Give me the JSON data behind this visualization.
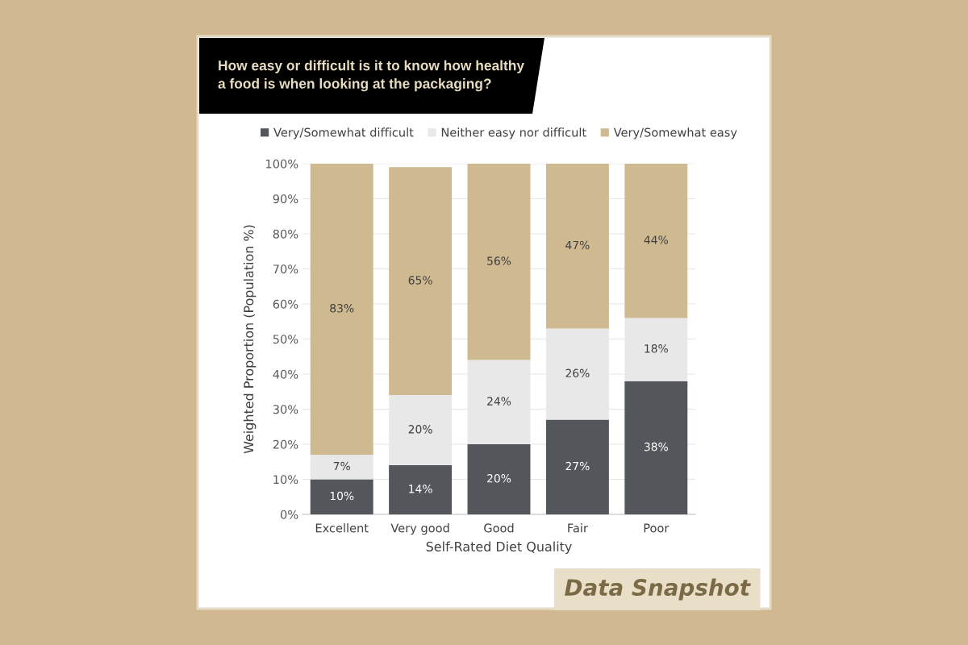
{
  "chart_data": {
    "type": "bar",
    "stacked": true,
    "title": "How easy or difficult is it to know how healthy a food is when looking at the packaging?",
    "xlabel": "Self-Rated Diet Quality",
    "ylabel": "Weighted Proportion (Population %)",
    "categories": [
      "Excellent",
      "Very good",
      "Good",
      "Fair",
      "Poor"
    ],
    "series": [
      {
        "name": "Very/Somewhat difficult",
        "color": "#53565a",
        "values": [
          10,
          14,
          20,
          27,
          38
        ],
        "value_labels": [
          "10%",
          "14%",
          "20%",
          "27%",
          "38%"
        ]
      },
      {
        "name": "Neither easy nor difficult",
        "color": "#e8e8e8",
        "values": [
          7,
          20,
          24,
          26,
          18
        ],
        "value_labels": [
          "7%",
          "20%",
          "24%",
          "26%",
          "18%"
        ]
      },
      {
        "name": "Very/Somewhat easy",
        "color": "#cfb991",
        "values": [
          83,
          65,
          56,
          47,
          44
        ],
        "value_labels": [
          "83%",
          "65%",
          "56%",
          "47%",
          "44%"
        ]
      }
    ],
    "ylim": [
      0,
      100
    ],
    "yticks": [
      {
        "value": 0,
        "label": "0%"
      },
      {
        "value": 10,
        "label": "10%"
      },
      {
        "value": 20,
        "label": "20%"
      },
      {
        "value": 30,
        "label": "30%"
      },
      {
        "value": 40,
        "label": "40%"
      },
      {
        "value": 50,
        "label": "50%"
      },
      {
        "value": 60,
        "label": "60%"
      },
      {
        "value": 70,
        "label": "70%"
      },
      {
        "value": 80,
        "label": "80%"
      },
      {
        "value": 90,
        "label": "90%"
      },
      {
        "value": 100,
        "label": "100%"
      }
    ],
    "grid": "y",
    "legend": "top",
    "annotations": [
      "Data Snapshot"
    ]
  }
}
